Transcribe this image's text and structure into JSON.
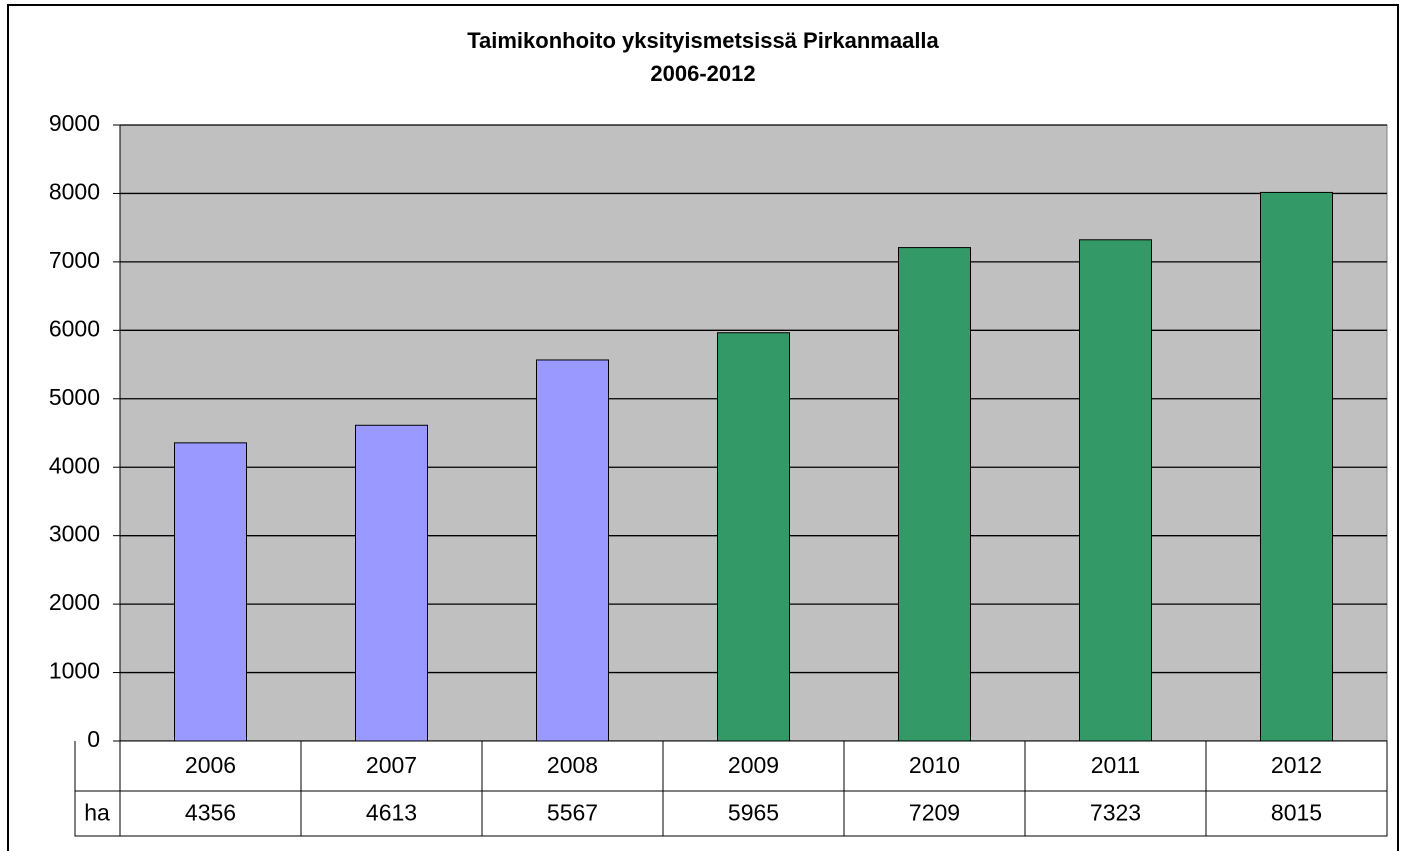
{
  "chart_data": {
    "type": "bar",
    "title": "Taimikonhoito yksityismetsissä Pirkanmaalla",
    "subtitle": "2006-2012",
    "categories": [
      "2006",
      "2007",
      "2008",
      "2009",
      "2010",
      "2011",
      "2012"
    ],
    "values": [
      4356,
      4613,
      5567,
      5965,
      7209,
      7323,
      8015
    ],
    "colors": [
      "#9999ff",
      "#9999ff",
      "#9999ff",
      "#339966",
      "#339966",
      "#339966",
      "#339966"
    ],
    "table_row_label": "ha",
    "ylim": [
      0,
      9000
    ],
    "yticks": [
      0,
      1000,
      2000,
      3000,
      4000,
      5000,
      6000,
      7000,
      8000,
      9000
    ],
    "grid": true
  }
}
